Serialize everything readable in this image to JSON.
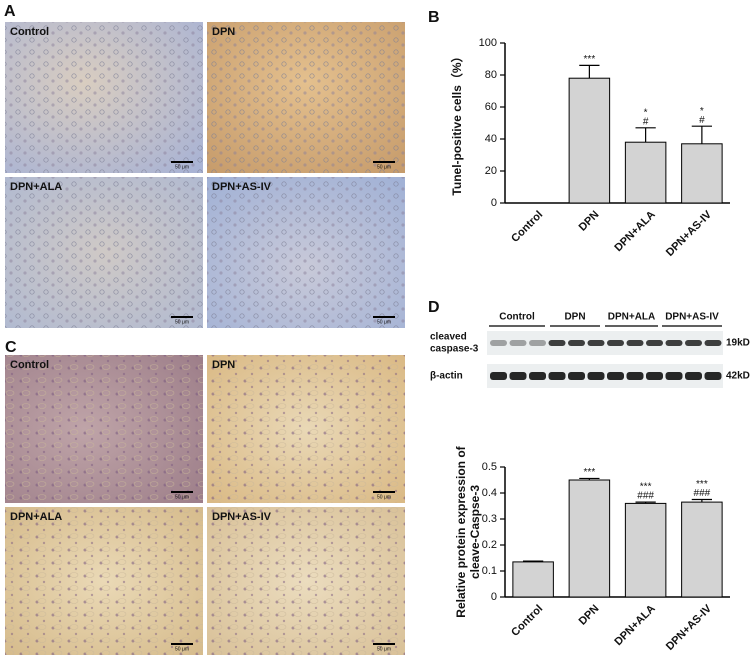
{
  "panel_labels": [
    "A",
    "B",
    "C",
    "D"
  ],
  "micrographs": {
    "A": [
      "Control",
      "DPN",
      "DPN+ALA",
      "DPN+AS-IV"
    ],
    "C": [
      "Control",
      "DPN",
      "DPN+ALA",
      "DPN+AS-IV"
    ],
    "scale_bar": "50 μm"
  },
  "blot": {
    "groups": [
      "Control",
      "DPN",
      "DPN+ALA",
      "DPN+AS-IV"
    ],
    "rows": [
      {
        "label": [
          "cleaved",
          "caspase-3"
        ],
        "size": "19kD"
      },
      {
        "label": [
          "β-actin"
        ],
        "size": "42kD"
      }
    ]
  },
  "chart_data": [
    {
      "type": "bar",
      "ylabel": [
        "Tunel-positive cells（%）"
      ],
      "categories": [
        "Control",
        "DPN",
        "DPN+ALA",
        "DPN+AS-IV"
      ],
      "values": [
        0,
        78,
        38,
        37
      ],
      "errors": [
        null,
        8,
        9,
        11
      ],
      "annotations": [
        null,
        [
          "***"
        ],
        [
          "*",
          "#"
        ],
        [
          "*",
          "#"
        ]
      ],
      "color": "#d3d3d3",
      "ylim": [
        0,
        100
      ],
      "yticks": [
        0,
        20,
        40,
        60,
        80,
        100
      ]
    },
    {
      "type": "bar",
      "ylabel": [
        "Relative protein expression of",
        "cleave-Caspse-3"
      ],
      "categories": [
        "Control",
        "DPN",
        "DPN+ALA",
        "DPN+AS-IV"
      ],
      "values": [
        0.135,
        0.45,
        0.36,
        0.365
      ],
      "errors": [
        0.003,
        0.006,
        0.005,
        0.01
      ],
      "annotations": [
        null,
        [
          "***"
        ],
        [
          "***",
          "###"
        ],
        [
          "***",
          "###"
        ]
      ],
      "color": "#d3d3d3",
      "ylim": [
        0,
        0.5
      ],
      "yticks": [
        0,
        0.1,
        0.2,
        0.3,
        0.4,
        0.5
      ]
    }
  ]
}
